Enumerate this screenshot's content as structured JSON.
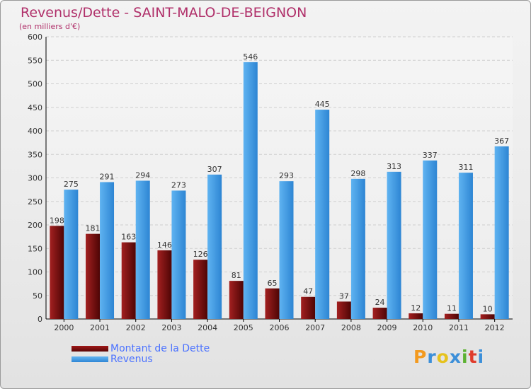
{
  "title": "Revenus/Dette - SAINT-MALO-DE-BEIGNON",
  "subtitle": "(en milliers d'€)",
  "colors": {
    "title": "#b0306a",
    "dette": "#7a0c0c",
    "revenus": "#3f9be6",
    "legend_text": "#4b72ff"
  },
  "chart_data": {
    "type": "bar",
    "title": "Revenus/Dette - SAINT-MALO-DE-BEIGNON",
    "ylabel": "(en milliers d'€)",
    "xlabel": "",
    "ylim": [
      0,
      600
    ],
    "yticks": [
      0,
      50,
      100,
      150,
      200,
      250,
      300,
      350,
      400,
      450,
      500,
      550,
      600
    ],
    "grid": true,
    "legend_position": "bottom-left",
    "categories": [
      "2000",
      "2001",
      "2002",
      "2003",
      "2004",
      "2005",
      "2006",
      "2007",
      "2008",
      "2009",
      "2010",
      "2011",
      "2012"
    ],
    "series": [
      {
        "name": "Montant de la Dette",
        "values": [
          198,
          181,
          163,
          146,
          126,
          81,
          65,
          47,
          37,
          24,
          12,
          11,
          10
        ]
      },
      {
        "name": "Revenus",
        "values": [
          275,
          291,
          294,
          273,
          307,
          546,
          293,
          445,
          298,
          313,
          337,
          311,
          367
        ]
      }
    ]
  },
  "legend": [
    {
      "label": "Montant de la Dette",
      "color": "#7a0c0c"
    },
    {
      "label": "Revenus",
      "color": "#3f9be6"
    }
  ],
  "logo": {
    "letters": [
      "P",
      "r",
      "o",
      "x",
      "i",
      "t",
      "i"
    ],
    "colors": [
      "#f39a1f",
      "#3c8fd9",
      "#e6c21d",
      "#3c8fd9",
      "#5db232",
      "#e03c2c",
      "#3c8fd9"
    ]
  }
}
